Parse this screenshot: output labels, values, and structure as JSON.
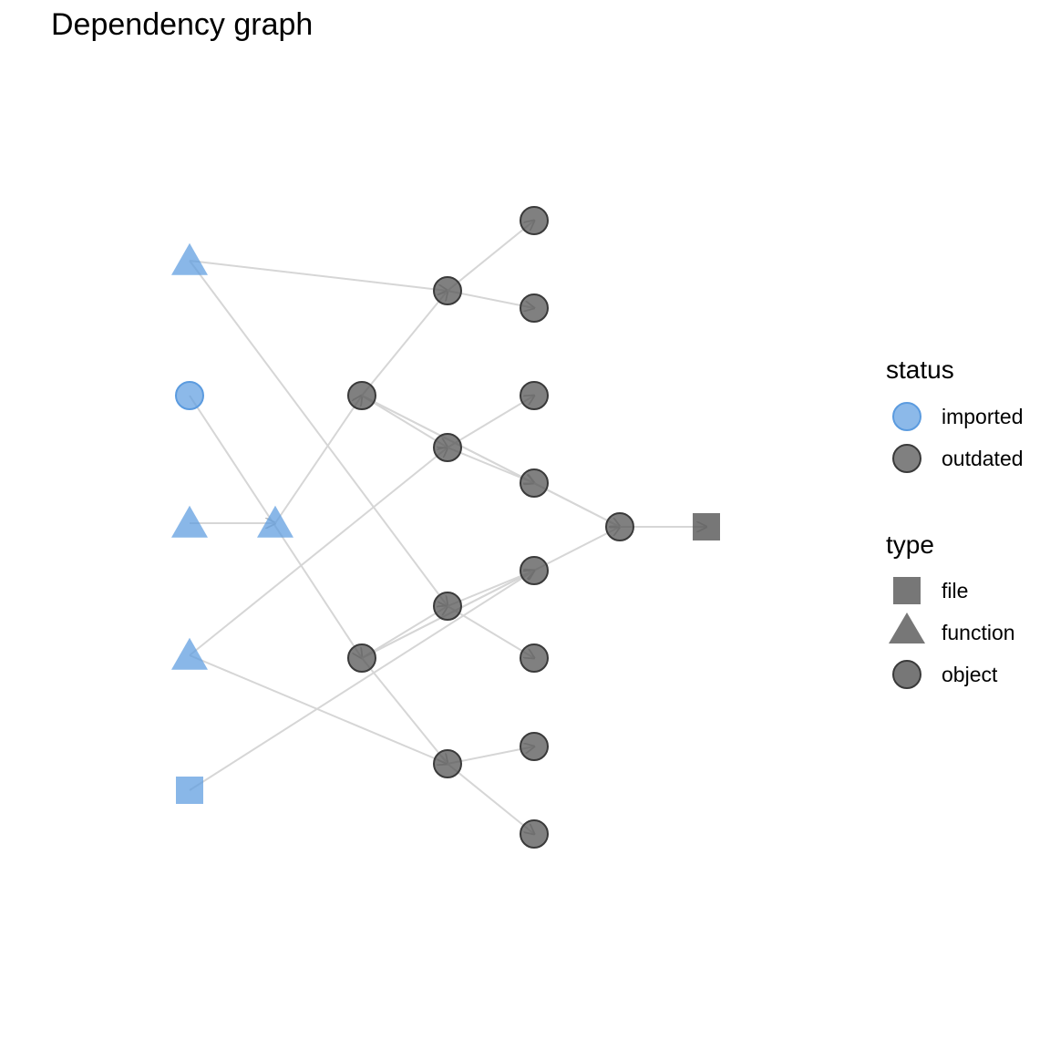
{
  "title": "Dependency graph",
  "colors": {
    "imported": "#5b9bdf",
    "outdated": "#555555",
    "edge": "#d6d6d6",
    "type_shape": "#777777"
  },
  "graph": {
    "nodes": [
      {
        "id": "a1",
        "status": "imported",
        "type": "function"
      },
      {
        "id": "a2",
        "status": "imported",
        "type": "object"
      },
      {
        "id": "a3",
        "status": "imported",
        "type": "function"
      },
      {
        "id": "a4",
        "status": "imported",
        "type": "function"
      },
      {
        "id": "a5",
        "status": "imported",
        "type": "file"
      },
      {
        "id": "b1",
        "status": "imported",
        "type": "function"
      },
      {
        "id": "c1",
        "status": "outdated",
        "type": "object"
      },
      {
        "id": "c2",
        "status": "outdated",
        "type": "object"
      },
      {
        "id": "d1",
        "status": "outdated",
        "type": "object"
      },
      {
        "id": "d2",
        "status": "outdated",
        "type": "object"
      },
      {
        "id": "d3",
        "status": "outdated",
        "type": "object"
      },
      {
        "id": "d4",
        "status": "outdated",
        "type": "object"
      },
      {
        "id": "e1",
        "status": "outdated",
        "type": "object"
      },
      {
        "id": "e2",
        "status": "outdated",
        "type": "object"
      },
      {
        "id": "e3",
        "status": "outdated",
        "type": "object"
      },
      {
        "id": "e4",
        "status": "outdated",
        "type": "object"
      },
      {
        "id": "e5",
        "status": "outdated",
        "type": "object"
      },
      {
        "id": "e6",
        "status": "outdated",
        "type": "object"
      },
      {
        "id": "e7",
        "status": "outdated",
        "type": "object"
      },
      {
        "id": "e8",
        "status": "outdated",
        "type": "object"
      },
      {
        "id": "f1",
        "status": "outdated",
        "type": "object"
      },
      {
        "id": "g1",
        "status": "outdated",
        "type": "file"
      }
    ],
    "edges": [
      [
        "a1",
        "d1"
      ],
      [
        "a1",
        "d3"
      ],
      [
        "a2",
        "c2"
      ],
      [
        "a3",
        "b1"
      ],
      [
        "a4",
        "d2"
      ],
      [
        "a4",
        "d4"
      ],
      [
        "a5",
        "e5"
      ],
      [
        "b1",
        "c1"
      ],
      [
        "c1",
        "d1"
      ],
      [
        "c1",
        "d2"
      ],
      [
        "c1",
        "e4"
      ],
      [
        "c1",
        "f1"
      ],
      [
        "c2",
        "d3"
      ],
      [
        "c2",
        "d4"
      ],
      [
        "c2",
        "e5"
      ],
      [
        "c2",
        "f1"
      ],
      [
        "d1",
        "e1"
      ],
      [
        "d1",
        "e2"
      ],
      [
        "d2",
        "e3"
      ],
      [
        "d2",
        "e4"
      ],
      [
        "d3",
        "e5"
      ],
      [
        "d3",
        "e6"
      ],
      [
        "d4",
        "e7"
      ],
      [
        "d4",
        "e8"
      ],
      [
        "e4",
        "f1"
      ],
      [
        "f1",
        "g1"
      ]
    ]
  },
  "legend": {
    "status_title": "status",
    "status_items": [
      {
        "key": "imported",
        "label": "imported"
      },
      {
        "key": "outdated",
        "label": "outdated"
      }
    ],
    "type_title": "type",
    "type_items": [
      {
        "key": "file",
        "label": "file"
      },
      {
        "key": "function",
        "label": "function"
      },
      {
        "key": "object",
        "label": "object"
      }
    ]
  }
}
